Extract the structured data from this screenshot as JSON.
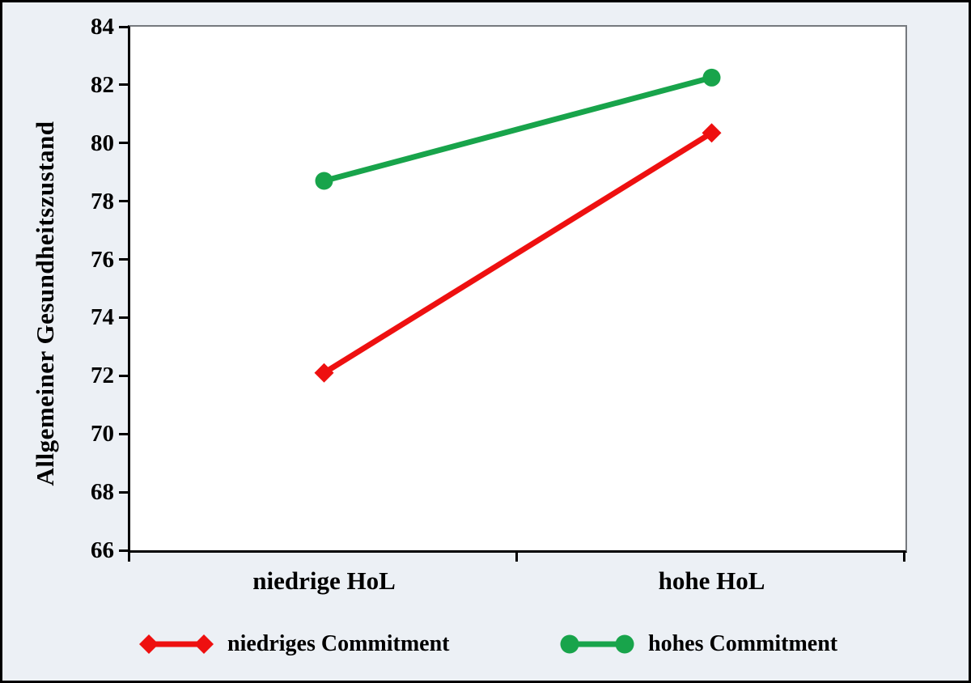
{
  "figure": {
    "background_color": "#ecf0f5",
    "frame_border_color": "#000000",
    "plot_background": "#ffffff",
    "plot_border_color": "#75797e",
    "axis_color": "#000000"
  },
  "chart_data": {
    "type": "line",
    "title": "",
    "xlabel": "",
    "ylabel": "Allgemeiner Gesundheitszustand",
    "categories": [
      "niedrige HoL",
      "hohe HoL"
    ],
    "series": [
      {
        "name": "niedriges Commitment",
        "marker": "diamond",
        "color": "#ee1010",
        "values": [
          72.1,
          80.35
        ]
      },
      {
        "name": "hohes Commitment",
        "marker": "circle",
        "color": "#18a44b",
        "values": [
          78.7,
          82.25
        ]
      }
    ],
    "ylim": [
      66,
      84
    ],
    "ytick_step": 2,
    "yticks": [
      "84",
      "82",
      "80",
      "78",
      "76",
      "74",
      "72",
      "70",
      "68",
      "66"
    ],
    "grid": false,
    "legend_position": "bottom"
  }
}
